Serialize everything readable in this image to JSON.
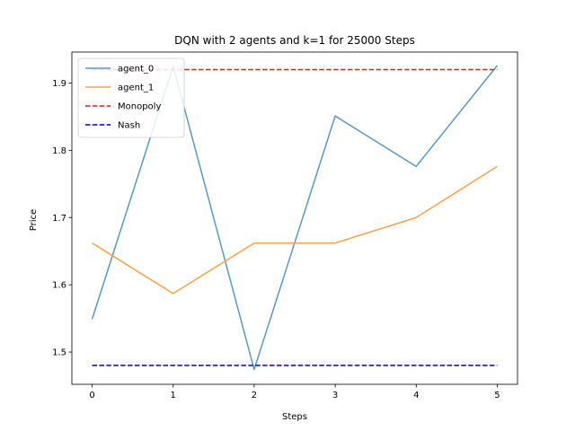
{
  "chart_data": {
    "type": "line",
    "title": "DQN with 2 agents and k=1 for 25000 Steps",
    "xlabel": "Steps",
    "ylabel": "Price",
    "xlim": [
      -0.25,
      5.25
    ],
    "ylim": [
      1.452,
      1.946
    ],
    "xticks": [
      0,
      1,
      2,
      3,
      4,
      5
    ],
    "yticks": [
      1.5,
      1.6,
      1.7,
      1.8,
      1.9
    ],
    "grid": false,
    "legend_position": "top-left",
    "x": [
      0,
      1,
      2,
      3,
      4,
      5
    ],
    "series": [
      {
        "name": "agent_0",
        "color": "#5799c7",
        "style": "solid",
        "values": [
          1.549,
          1.925,
          1.474,
          1.851,
          1.776,
          1.926
        ]
      },
      {
        "name": "agent_1",
        "color": "#ffa04b",
        "style": "solid",
        "values": [
          1.662,
          1.587,
          1.662,
          1.662,
          1.7,
          1.776
        ]
      },
      {
        "name": "Monopoly",
        "color": "#e41a1c",
        "style": "dashed",
        "values": [
          1.92,
          1.92,
          1.92,
          1.92,
          1.92,
          1.92
        ]
      },
      {
        "name": "Nash",
        "color": "#0000cc",
        "style": "dashed",
        "values": [
          1.48,
          1.48,
          1.48,
          1.48,
          1.48,
          1.48
        ]
      }
    ]
  }
}
